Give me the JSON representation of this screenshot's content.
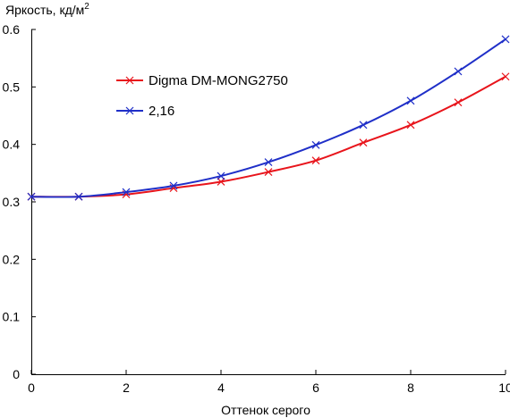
{
  "chart_data": {
    "type": "line",
    "title": "",
    "ylabel": "Яркость, кд/м",
    "ylabel_superscript": "2",
    "xlabel": "Оттенок серого",
    "xlim": [
      0,
      10
    ],
    "ylim": [
      0,
      0.6
    ],
    "x_ticks": [
      "0",
      "2",
      "4",
      "6",
      "8",
      "10"
    ],
    "y_ticks": [
      "0",
      "0.1",
      "0.2",
      "0.3",
      "0.4",
      "0.5",
      "0.6"
    ],
    "grid": false,
    "legend_position": "top-left",
    "series": [
      {
        "name": "Digma DM-MONG2750",
        "color": "#e8141b",
        "marker": "x",
        "x": [
          0,
          1,
          2,
          3,
          4,
          5,
          6,
          7,
          8,
          9,
          10
        ],
        "y": [
          0.309,
          0.309,
          0.313,
          0.324,
          0.335,
          0.352,
          0.372,
          0.403,
          0.434,
          0.473,
          0.518
        ]
      },
      {
        "name": "2,16",
        "color": "#1f2fc8",
        "marker": "x",
        "x": [
          0,
          1,
          2,
          3,
          4,
          5,
          6,
          7,
          8,
          9,
          10
        ],
        "y": [
          0.309,
          0.309,
          0.317,
          0.328,
          0.345,
          0.369,
          0.399,
          0.434,
          0.476,
          0.527,
          0.583
        ]
      }
    ]
  }
}
